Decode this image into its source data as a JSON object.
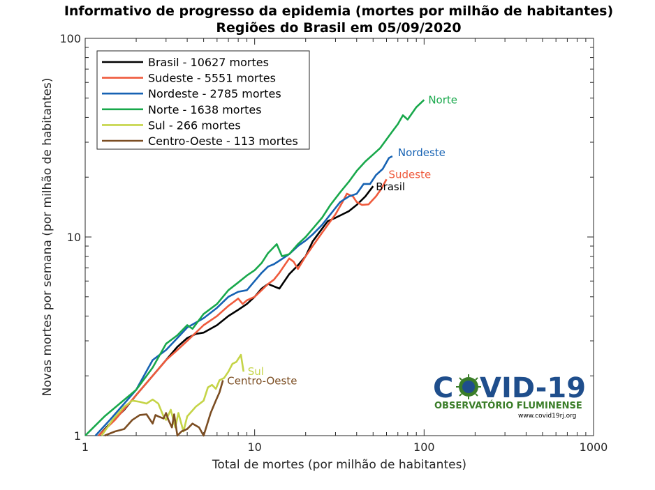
{
  "chart_data": {
    "type": "line",
    "title": "Informativo de progresso da epidemia (mortes por milhão de habitantes)",
    "subtitle": "Regiões do Brasil em 05/09/2020",
    "xlabel": "Total de mortes (por milhão de habitantes)",
    "ylabel": "Novas mortes por semana (por milhão de habitantes)",
    "x_scale": "log",
    "y_scale": "log",
    "xlim": [
      1,
      1000
    ],
    "ylim": [
      1,
      100
    ],
    "x_ticks": [
      "1",
      "10",
      "100",
      "1000"
    ],
    "y_ticks": [
      "1",
      "10",
      "100"
    ],
    "legend_position": "top-left",
    "series": [
      {
        "name": "Brasil - 10627 mortes",
        "end_label": "Brasil",
        "color": "#000000",
        "points": [
          [
            1.2,
            1.0
          ],
          [
            1.4,
            1.15
          ],
          [
            1.7,
            1.35
          ],
          [
            2.0,
            1.6
          ],
          [
            2.5,
            2.0
          ],
          [
            3.0,
            2.4
          ],
          [
            3.5,
            2.8
          ],
          [
            4.0,
            3.1
          ],
          [
            4.5,
            3.25
          ],
          [
            5.0,
            3.3
          ],
          [
            6.0,
            3.6
          ],
          [
            7.0,
            4.0
          ],
          [
            8.0,
            4.3
          ],
          [
            9.0,
            4.6
          ],
          [
            10.0,
            5.0
          ],
          [
            11.0,
            5.5
          ],
          [
            12.0,
            5.8
          ],
          [
            14.0,
            5.5
          ],
          [
            16.0,
            6.5
          ],
          [
            18.0,
            7.2
          ],
          [
            20.0,
            8.0
          ],
          [
            22.0,
            9.5
          ],
          [
            25.0,
            11.0
          ],
          [
            27.0,
            12.0
          ],
          [
            30.0,
            12.5
          ],
          [
            33.0,
            13.0
          ],
          [
            36.0,
            13.5
          ],
          [
            40.0,
            14.5
          ],
          [
            45.0,
            16.0
          ],
          [
            50.0,
            18.0
          ]
        ]
      },
      {
        "name": "Sudeste - 5551 mortes",
        "end_label": "Sudeste",
        "color": "#ef5a3c",
        "points": [
          [
            1.2,
            1.0
          ],
          [
            1.5,
            1.2
          ],
          [
            2.0,
            1.6
          ],
          [
            2.5,
            2.0
          ],
          [
            3.0,
            2.4
          ],
          [
            3.5,
            2.7
          ],
          [
            4.0,
            3.0
          ],
          [
            4.5,
            3.3
          ],
          [
            5.0,
            3.6
          ],
          [
            6.0,
            4.0
          ],
          [
            7.0,
            4.5
          ],
          [
            7.5,
            4.7
          ],
          [
            8.0,
            4.9
          ],
          [
            8.5,
            4.6
          ],
          [
            9.0,
            4.8
          ],
          [
            10.0,
            5.0
          ],
          [
            11.0,
            5.4
          ],
          [
            12.0,
            5.8
          ],
          [
            13.0,
            6.1
          ],
          [
            14.0,
            6.6
          ],
          [
            15.0,
            7.2
          ],
          [
            16.0,
            7.8
          ],
          [
            17.0,
            7.5
          ],
          [
            18.0,
            6.9
          ],
          [
            20.0,
            8.0
          ],
          [
            22.0,
            9.0
          ],
          [
            25.0,
            10.5
          ],
          [
            28.0,
            12.0
          ],
          [
            30.0,
            13.0
          ],
          [
            33.0,
            15.0
          ],
          [
            35.0,
            16.5
          ],
          [
            38.0,
            16.0
          ],
          [
            40.0,
            15.0
          ],
          [
            43.0,
            14.5
          ],
          [
            47.0,
            14.6
          ],
          [
            52.0,
            16.0
          ],
          [
            56.0,
            17.5
          ],
          [
            60.0,
            19.5
          ]
        ]
      },
      {
        "name": "Nordeste - 2785 mortes",
        "end_label": "Nordeste",
        "color": "#1662b3",
        "points": [
          [
            1.15,
            1.0
          ],
          [
            1.4,
            1.2
          ],
          [
            1.7,
            1.45
          ],
          [
            2.0,
            1.7
          ],
          [
            2.5,
            2.4
          ],
          [
            3.0,
            2.7
          ],
          [
            3.5,
            3.1
          ],
          [
            4.0,
            3.5
          ],
          [
            5.0,
            3.9
          ],
          [
            6.0,
            4.4
          ],
          [
            7.0,
            5.0
          ],
          [
            8.0,
            5.3
          ],
          [
            9.0,
            5.4
          ],
          [
            10.0,
            6.0
          ],
          [
            11.0,
            6.6
          ],
          [
            12.0,
            7.1
          ],
          [
            13.0,
            7.3
          ],
          [
            14.0,
            7.6
          ],
          [
            15.0,
            7.9
          ],
          [
            16.0,
            8.2
          ],
          [
            18.0,
            9.0
          ],
          [
            20.0,
            9.6
          ],
          [
            22.0,
            10.3
          ],
          [
            25.0,
            11.5
          ],
          [
            28.0,
            13.0
          ],
          [
            32.0,
            15.0
          ],
          [
            36.0,
            16.0
          ],
          [
            40.0,
            16.5
          ],
          [
            44.0,
            18.5
          ],
          [
            48.0,
            18.5
          ],
          [
            52.0,
            20.5
          ],
          [
            57.0,
            22.0
          ],
          [
            62.0,
            25.0
          ],
          [
            65.0,
            25.5
          ]
        ]
      },
      {
        "name": "Norte - 1638 mortes",
        "end_label": "Norte",
        "color": "#18a84b",
        "points": [
          [
            1.0,
            1.0
          ],
          [
            1.3,
            1.25
          ],
          [
            1.6,
            1.45
          ],
          [
            2.0,
            1.7
          ],
          [
            2.5,
            2.2
          ],
          [
            3.0,
            2.9
          ],
          [
            3.5,
            3.2
          ],
          [
            4.0,
            3.6
          ],
          [
            4.3,
            3.45
          ],
          [
            5.0,
            4.1
          ],
          [
            6.0,
            4.6
          ],
          [
            7.0,
            5.4
          ],
          [
            8.0,
            5.9
          ],
          [
            9.0,
            6.4
          ],
          [
            10.0,
            6.8
          ],
          [
            11.0,
            7.4
          ],
          [
            12.0,
            8.3
          ],
          [
            13.0,
            8.9
          ],
          [
            13.5,
            9.2
          ],
          [
            14.5,
            8.0
          ],
          [
            16.0,
            8.2
          ],
          [
            18.0,
            9.2
          ],
          [
            20.0,
            10.0
          ],
          [
            22.0,
            11.0
          ],
          [
            25.0,
            12.5
          ],
          [
            28.0,
            14.5
          ],
          [
            32.0,
            16.8
          ],
          [
            36.0,
            19.0
          ],
          [
            40.0,
            21.5
          ],
          [
            45.0,
            24.0
          ],
          [
            50.0,
            26.0
          ],
          [
            55.0,
            28.0
          ],
          [
            60.0,
            31.0
          ],
          [
            65.0,
            34.0
          ],
          [
            70.0,
            37.0
          ],
          [
            75.0,
            41.0
          ],
          [
            80.0,
            39.0
          ],
          [
            85.0,
            42.0
          ],
          [
            90.0,
            45.0
          ],
          [
            100.0,
            49.0
          ]
        ]
      },
      {
        "name": "Sul - 266 mortes",
        "end_label": "Sul",
        "color": "#c5d447",
        "points": [
          [
            1.25,
            1.0
          ],
          [
            1.45,
            1.2
          ],
          [
            1.7,
            1.4
          ],
          [
            1.9,
            1.5
          ],
          [
            2.1,
            1.48
          ],
          [
            2.3,
            1.45
          ],
          [
            2.5,
            1.52
          ],
          [
            2.7,
            1.45
          ],
          [
            2.9,
            1.25
          ],
          [
            3.0,
            1.2
          ],
          [
            3.2,
            1.35
          ],
          [
            3.4,
            1.1
          ],
          [
            3.55,
            1.3
          ],
          [
            3.8,
            1.05
          ],
          [
            4.0,
            1.25
          ],
          [
            4.5,
            1.4
          ],
          [
            5.0,
            1.5
          ],
          [
            5.3,
            1.75
          ],
          [
            5.6,
            1.8
          ],
          [
            5.9,
            1.72
          ],
          [
            6.2,
            1.9
          ],
          [
            6.6,
            1.95
          ],
          [
            7.0,
            2.1
          ],
          [
            7.4,
            2.3
          ],
          [
            7.8,
            2.35
          ],
          [
            8.3,
            2.55
          ],
          [
            8.6,
            2.1
          ]
        ]
      },
      {
        "name": "Centro-Oeste - 113 mortes",
        "end_label": "Centro-Oeste",
        "color": "#7b4d22",
        "points": [
          [
            1.3,
            1.0
          ],
          [
            1.5,
            1.05
          ],
          [
            1.7,
            1.08
          ],
          [
            1.9,
            1.2
          ],
          [
            2.1,
            1.27
          ],
          [
            2.3,
            1.28
          ],
          [
            2.5,
            1.15
          ],
          [
            2.6,
            1.27
          ],
          [
            2.7,
            1.25
          ],
          [
            2.9,
            1.22
          ],
          [
            3.0,
            1.3
          ],
          [
            3.1,
            1.2
          ],
          [
            3.25,
            1.1
          ],
          [
            3.35,
            1.28
          ],
          [
            3.5,
            1.0
          ],
          [
            3.7,
            1.05
          ],
          [
            4.0,
            1.08
          ],
          [
            4.3,
            1.15
          ],
          [
            4.7,
            1.1
          ],
          [
            5.0,
            1.0
          ],
          [
            5.5,
            1.3
          ],
          [
            5.9,
            1.5
          ],
          [
            6.2,
            1.65
          ],
          [
            6.5,
            1.9
          ]
        ]
      }
    ]
  },
  "logo": {
    "word_left": "C",
    "word_right": "VID-19",
    "subtitle": "OBSERVATÓRIO FLUMINENSE",
    "url": "www.covid19rj.org"
  }
}
